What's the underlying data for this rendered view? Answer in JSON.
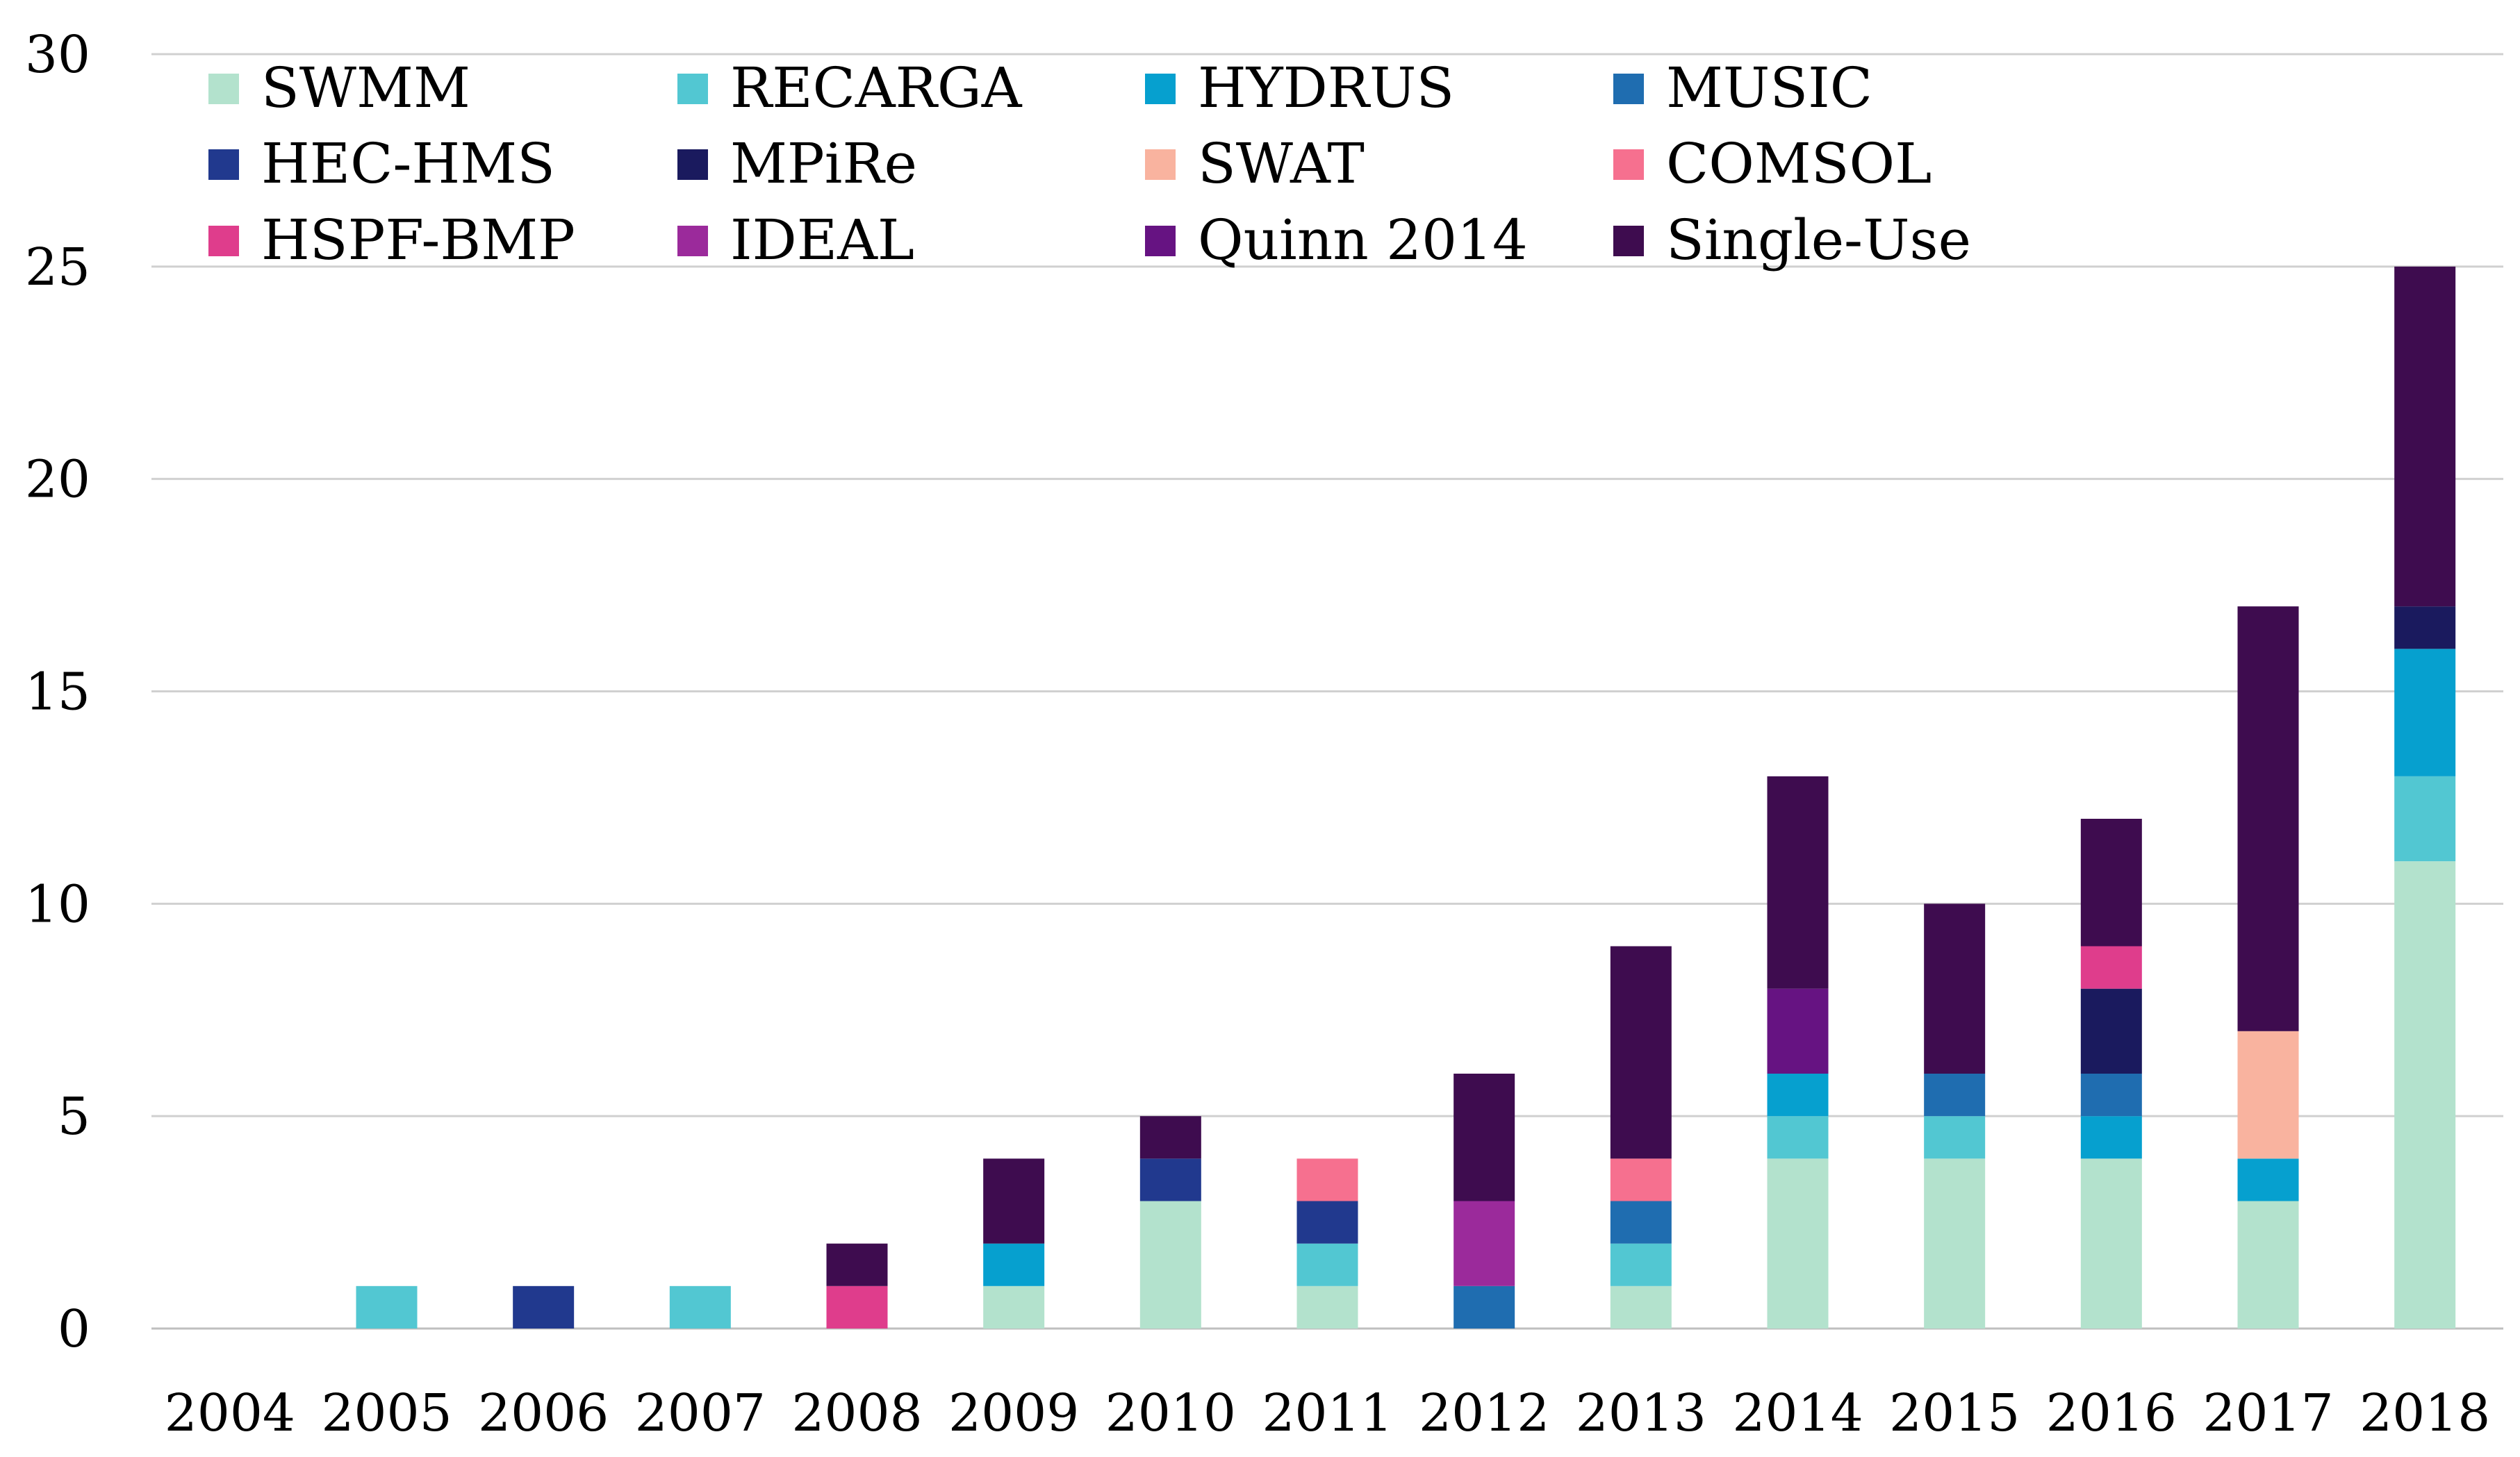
{
  "chart_data": {
    "type": "bar",
    "stacked": true,
    "title": "",
    "xlabel": "",
    "ylabel": "",
    "ylim": [
      0,
      30
    ],
    "yticks": [
      0,
      5,
      10,
      15,
      20,
      25,
      30
    ],
    "grid": true,
    "legend_position": "top-left",
    "categories": [
      "2004",
      "2005",
      "2006",
      "2007",
      "2008",
      "2009",
      "2010",
      "2011",
      "2012",
      "2013",
      "2014",
      "2015",
      "2016",
      "2017",
      "2018"
    ],
    "series": [
      {
        "name": "SWMM",
        "color": "#b3e2cd",
        "values": [
          0,
          0,
          0,
          0,
          0,
          1,
          3,
          1,
          0,
          1,
          4,
          4,
          4,
          3,
          11
        ]
      },
      {
        "name": "RECARGA",
        "color": "#52c7d2",
        "values": [
          0,
          1,
          0,
          1,
          0,
          0,
          0,
          1,
          0,
          1,
          1,
          1,
          0,
          0,
          2
        ]
      },
      {
        "name": "HYDRUS",
        "color": "#06a0cf",
        "values": [
          0,
          0,
          0,
          0,
          0,
          1,
          0,
          0,
          0,
          0,
          1,
          0,
          1,
          1,
          3
        ]
      },
      {
        "name": "MUSIC",
        "color": "#1f6db0",
        "values": [
          0,
          0,
          0,
          0,
          0,
          0,
          0,
          0,
          1,
          1,
          0,
          1,
          1,
          0,
          0
        ]
      },
      {
        "name": "HEC-HMS",
        "color": "#21398e",
        "values": [
          0,
          0,
          1,
          0,
          0,
          0,
          1,
          1,
          0,
          0,
          0,
          0,
          0,
          0,
          0
        ]
      },
      {
        "name": "MPiRe",
        "color": "#1a1a5e",
        "values": [
          0,
          0,
          0,
          0,
          0,
          0,
          0,
          0,
          0,
          0,
          0,
          0,
          2,
          0,
          1
        ]
      },
      {
        "name": "SWAT",
        "color": "#f9b39f",
        "values": [
          0,
          0,
          0,
          0,
          0,
          0,
          0,
          0,
          0,
          0,
          0,
          0,
          0,
          3,
          0
        ]
      },
      {
        "name": "COMSOL",
        "color": "#f6708f",
        "values": [
          0,
          0,
          0,
          0,
          0,
          0,
          0,
          1,
          0,
          1,
          0,
          0,
          0,
          0,
          0
        ]
      },
      {
        "name": "HSPF-BMP",
        "color": "#df3d8c",
        "values": [
          0,
          0,
          0,
          0,
          1,
          0,
          0,
          0,
          0,
          0,
          0,
          0,
          1,
          0,
          0
        ]
      },
      {
        "name": "IDEAL",
        "color": "#9b2a9b",
        "values": [
          0,
          0,
          0,
          0,
          0,
          0,
          0,
          0,
          2,
          0,
          0,
          0,
          0,
          0,
          0
        ]
      },
      {
        "name": "Quinn 2014",
        "color": "#661382",
        "values": [
          0,
          0,
          0,
          0,
          0,
          0,
          0,
          0,
          0,
          0,
          2,
          0,
          0,
          0,
          0
        ]
      },
      {
        "name": "Single-Use",
        "color": "#3e0c4f",
        "values": [
          0,
          0,
          0,
          0,
          1,
          2,
          1,
          0,
          3,
          5,
          5,
          4,
          3,
          10,
          8
        ]
      }
    ]
  }
}
